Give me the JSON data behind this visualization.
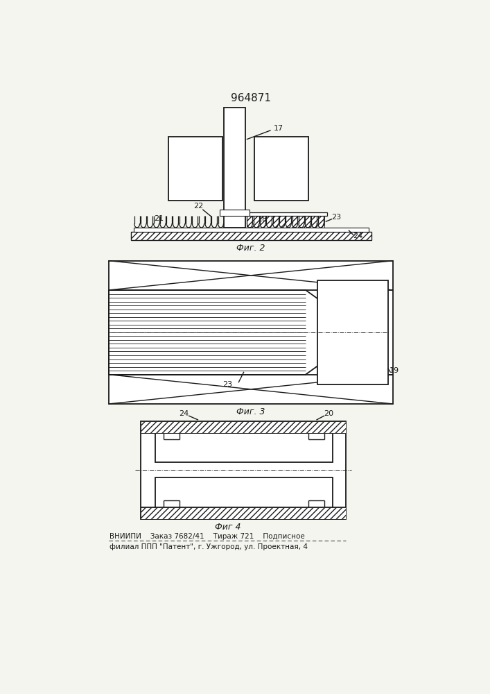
{
  "title": "964871",
  "title_fontsize": 11,
  "fig1_label": "Фиг. 2",
  "fig2_label": "Фиг. 3",
  "fig3_label": "Фиг 4",
  "footer_line1": "ВНИИПИ    Заказ 7682/41    Тираж 721    Подписное",
  "footer_line2": "филиал ППП \"Патент\", г. Ужгород, ул. Проектная, 4",
  "bg_color": "#f5f5f0",
  "line_color": "#1a1a1a",
  "label_color": "#1a1a1a"
}
